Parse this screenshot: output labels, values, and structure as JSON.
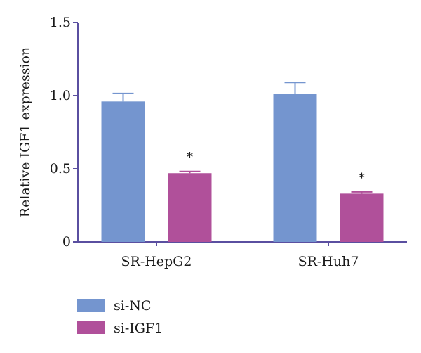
{
  "chart_data": {
    "type": "bar",
    "categories": [
      "SR-HepG2",
      "SR-Huh7"
    ],
    "series": [
      {
        "name": "si-NC",
        "color": "#7495CF",
        "values": [
          0.96,
          1.01
        ],
        "errors": [
          0.055,
          0.08
        ]
      },
      {
        "name": "si-IGF1",
        "color": "#B0509A",
        "values": [
          0.47,
          0.33
        ],
        "errors": [
          0.012,
          0.012
        ]
      }
    ],
    "annotations": [
      {
        "category": "SR-HepG2",
        "series": "si-IGF1",
        "text": "*"
      },
      {
        "category": "SR-Huh7",
        "series": "si-IGF1",
        "text": "*"
      }
    ],
    "ylabel": "Relative IGF1 expression",
    "xlabel": "",
    "ylim": [
      0,
      1.5
    ],
    "yticks": [
      0,
      0.5,
      1.0,
      1.5
    ],
    "ytick_labels": [
      "0",
      "0.5",
      "1.0",
      "1.5"
    ],
    "grid": false,
    "legend_position": "bottom-left",
    "axis_color": "#5a4fa0"
  }
}
